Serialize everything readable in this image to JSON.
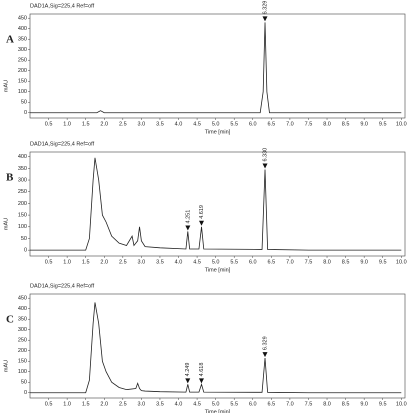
{
  "chart_data": [
    {
      "type": "line",
      "panel": "A",
      "title": "DAD1A,Sig=225,4 Ref=off",
      "ylabel": "mAU",
      "xlabel": "Time [min]",
      "color": "#222222",
      "x": [
        0,
        1.8,
        1.9,
        2.0,
        6.2,
        6.28,
        6.33,
        6.38,
        6.45,
        10
      ],
      "values": [
        0,
        0,
        10,
        0,
        0,
        100,
        430,
        100,
        0,
        0
      ],
      "annotations": [
        {
          "label": "6.329",
          "x": 6.329,
          "y": 430
        }
      ],
      "xlim": [
        0,
        10.1
      ],
      "ylim": [
        -25,
        470
      ],
      "xticks": [
        0.5,
        {
          "value": 1,
          "label": "1.0"
        },
        1.5,
        {
          "value": 2,
          "label": "2.0"
        },
        2.5,
        {
          "value": 3,
          "label": "3.0"
        },
        3.5,
        {
          "value": 4,
          "label": "4.0"
        },
        4.5,
        {
          "value": 5,
          "label": "5.0"
        },
        5.5,
        {
          "value": 6,
          "label": "6.0"
        },
        6.5,
        {
          "value": 7,
          "label": "7.0"
        },
        7.5,
        {
          "value": 8,
          "label": "8.0"
        },
        8.5,
        {
          "value": 9,
          "label": "9.0"
        },
        9.5,
        {
          "value": 10,
          "label": "10.0"
        }
      ],
      "yticks": [
        0,
        50,
        100,
        150,
        200,
        250,
        300,
        350,
        400,
        450
      ]
    },
    {
      "type": "line",
      "panel": "B",
      "title": "DAD1A,Sig=225,4 Ref=off",
      "ylabel": "mAU",
      "xlabel": "Time [min]",
      "color": "#222222",
      "x": [
        0,
        1.5,
        1.6,
        1.7,
        1.75,
        1.85,
        1.95,
        2.05,
        2.2,
        2.4,
        2.6,
        2.75,
        2.8,
        2.9,
        2.95,
        3.0,
        3.1,
        3.5,
        4.2,
        4.25,
        4.3,
        4.55,
        4.62,
        4.68,
        6.25,
        6.33,
        6.4,
        7.5,
        10
      ],
      "values": [
        0,
        0,
        50,
        300,
        395,
        300,
        150,
        120,
        60,
        30,
        20,
        60,
        20,
        40,
        100,
        40,
        15,
        10,
        5,
        80,
        5,
        5,
        100,
        5,
        3,
        345,
        3,
        0,
        0
      ],
      "annotations": [
        {
          "label": "4.251",
          "x": 4.251,
          "y": 80
        },
        {
          "label": "4.619",
          "x": 4.619,
          "y": 100
        },
        {
          "label": "6.330",
          "x": 6.33,
          "y": 345
        }
      ],
      "xlim": [
        0,
        10.1
      ],
      "ylim": [
        -25,
        420
      ],
      "xticks": [
        0.5,
        {
          "value": 1,
          "label": "1.0"
        },
        1.5,
        {
          "value": 2,
          "label": "2.0"
        },
        2.5,
        {
          "value": 3,
          "label": "3.0"
        },
        3.5,
        {
          "value": 4,
          "label": "4.0"
        },
        4.5,
        {
          "value": 5,
          "label": "5.0"
        },
        5.5,
        {
          "value": 6,
          "label": "6.0"
        },
        6.5,
        {
          "value": 7,
          "label": "7.0"
        },
        7.5,
        {
          "value": 8,
          "label": "8.0"
        },
        8.5,
        {
          "value": 9,
          "label": "9.0"
        },
        9.5,
        {
          "value": 10,
          "label": "10.0"
        }
      ],
      "yticks": [
        0,
        50,
        100,
        150,
        200,
        250,
        300,
        350,
        400
      ]
    },
    {
      "type": "line",
      "panel": "C",
      "title": "DAD1A,Sig=225,4 Ref=off",
      "ylabel": "mAU",
      "xlabel": "Time [min]",
      "color": "#222222",
      "x": [
        0,
        1.5,
        1.6,
        1.7,
        1.75,
        1.85,
        1.95,
        2.05,
        2.2,
        2.4,
        2.6,
        2.85,
        2.9,
        2.95,
        3.0,
        3.1,
        3.5,
        4.2,
        4.25,
        4.3,
        4.55,
        4.62,
        4.68,
        6.25,
        6.33,
        6.4,
        7.5,
        10
      ],
      "values": [
        0,
        0,
        60,
        330,
        430,
        330,
        150,
        100,
        50,
        25,
        15,
        20,
        45,
        20,
        10,
        8,
        5,
        3,
        40,
        3,
        3,
        40,
        3,
        2,
        165,
        2,
        0,
        0
      ],
      "annotations": [
        {
          "label": "4.249",
          "x": 4.249,
          "y": 40
        },
        {
          "label": "4.618",
          "x": 4.618,
          "y": 40
        },
        {
          "label": "6.329",
          "x": 6.329,
          "y": 165
        }
      ],
      "xlim": [
        0,
        10.1
      ],
      "ylim": [
        -25,
        470
      ],
      "xticks": [
        0.5,
        {
          "value": 1,
          "label": "1.0"
        },
        1.5,
        {
          "value": 2,
          "label": "2.0"
        },
        2.5,
        {
          "value": 3,
          "label": "3.0"
        },
        3.5,
        {
          "value": 4,
          "label": "4.0"
        },
        4.5,
        {
          "value": 5,
          "label": "5.0"
        },
        5.5,
        {
          "value": 6,
          "label": "6.0"
        },
        6.5,
        {
          "value": 7,
          "label": "7.0"
        },
        7.5,
        {
          "value": 8,
          "label": "8.0"
        },
        8.5,
        {
          "value": 9,
          "label": "9.0"
        },
        9.5,
        {
          "value": 10,
          "label": "10.0"
        }
      ],
      "yticks": [
        0,
        50,
        100,
        150,
        200,
        250,
        300,
        350,
        400,
        450
      ]
    }
  ]
}
